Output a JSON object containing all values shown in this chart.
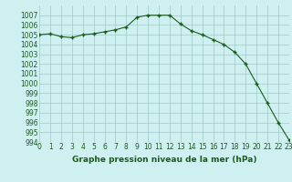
{
  "x": [
    0,
    1,
    2,
    3,
    4,
    5,
    6,
    7,
    8,
    9,
    10,
    11,
    12,
    13,
    14,
    15,
    16,
    17,
    18,
    19,
    20,
    21,
    22,
    23
  ],
  "y": [
    1005.0,
    1005.1,
    1004.8,
    1004.7,
    1005.0,
    1005.1,
    1005.3,
    1005.5,
    1005.8,
    1006.8,
    1007.0,
    1007.0,
    1007.0,
    1006.1,
    1005.4,
    1005.0,
    1004.5,
    1004.0,
    1003.2,
    1002.0,
    1000.0,
    998.0,
    996.0,
    994.2
  ],
  "line_color": "#1a5c1a",
  "marker": "+",
  "marker_color": "#1a5c1a",
  "bg_color": "#cff0f0",
  "grid_color": "#a0c8c8",
  "title": "Graphe pression niveau de la mer (hPa)",
  "ylim": [
    994,
    1008
  ],
  "xlim": [
    0,
    23
  ],
  "yticks": [
    994,
    995,
    996,
    997,
    998,
    999,
    1000,
    1001,
    1002,
    1003,
    1004,
    1005,
    1006,
    1007
  ],
  "xticks": [
    0,
    1,
    2,
    3,
    4,
    5,
    6,
    7,
    8,
    9,
    10,
    11,
    12,
    13,
    14,
    15,
    16,
    17,
    18,
    19,
    20,
    21,
    22,
    23
  ],
  "tick_fontsize": 5.5,
  "title_fontsize": 6.5,
  "title_fontweight": "bold"
}
